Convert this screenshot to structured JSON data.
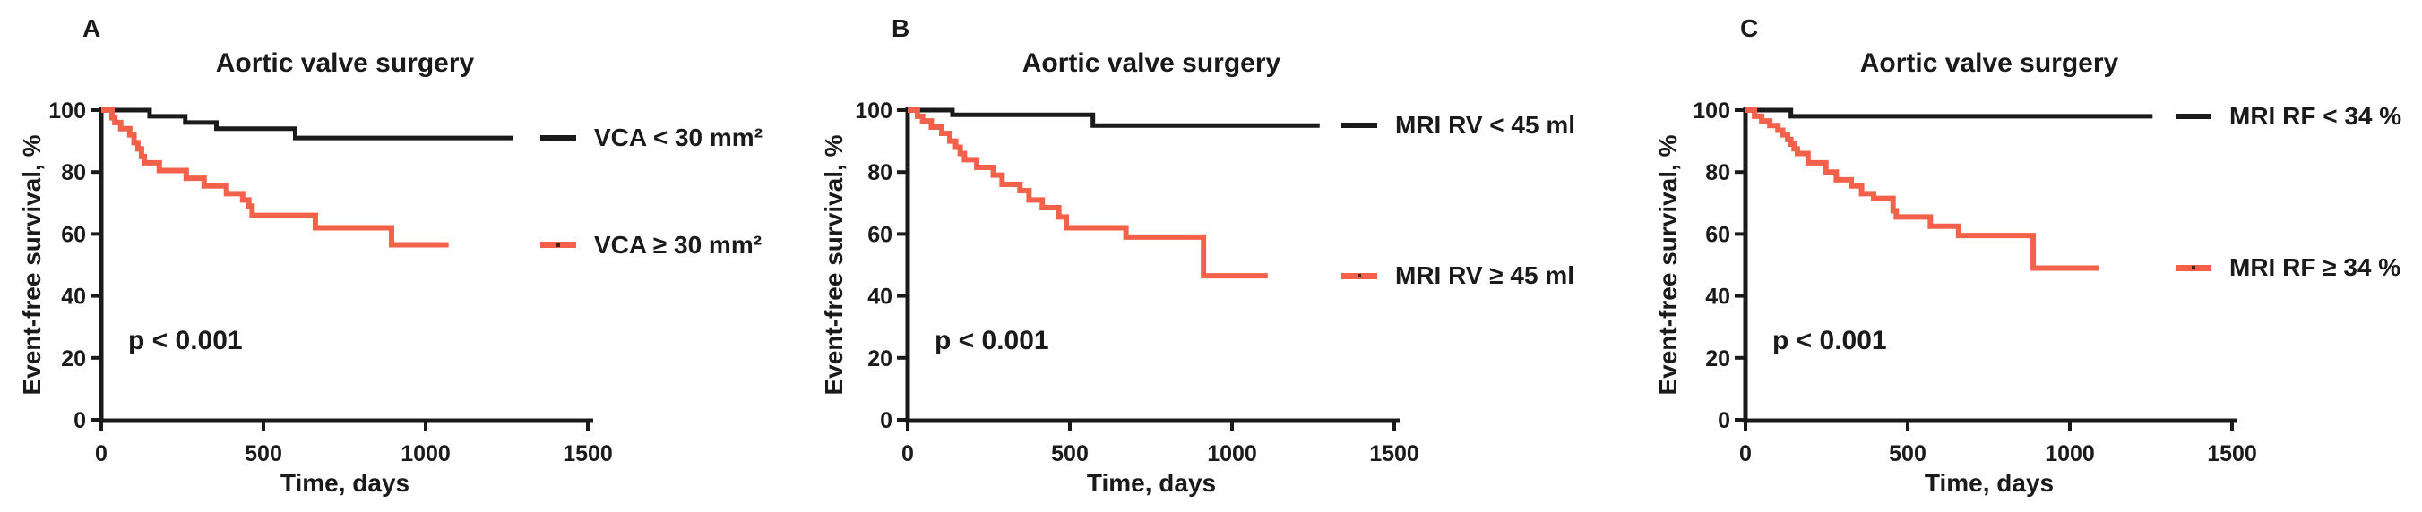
{
  "figure": {
    "background": "#ffffff",
    "text_color": "#1a1a1a",
    "curve_black": "#1a1a1a",
    "curve_red": "#f4614a"
  },
  "chart_data": [
    {
      "type": "line",
      "subtype": "kaplan-meier-step",
      "panel": "A",
      "title": "Aortic valve surgery",
      "xlabel": "Time, days",
      "ylabel": "Event-free survival, %",
      "annotation": "p < 0.001",
      "xlim": [
        0,
        1500
      ],
      "ylim": [
        0,
        100
      ],
      "xticks": [
        0,
        500,
        1000,
        1500
      ],
      "yticks": [
        0,
        20,
        40,
        60,
        80,
        100
      ],
      "grid": false,
      "legend_position": "right-of-plot, aligned with curve end",
      "series": [
        {
          "name": "VCA < 30 mm²",
          "color": "#1a1a1a",
          "points": [
            [
              0,
              100
            ],
            [
              149,
              98
            ],
            [
              259,
              96
            ],
            [
              355,
              94
            ],
            [
              598,
              91
            ],
            [
              1270,
              91
            ]
          ]
        },
        {
          "name": "VCA ≥ 30 mm²",
          "color": "#f4614a",
          "points": [
            [
              0,
              100
            ],
            [
              33,
              97.5
            ],
            [
              42,
              96
            ],
            [
              60,
              94
            ],
            [
              88,
              92
            ],
            [
              101,
              89.5
            ],
            [
              113,
              87.5
            ],
            [
              124,
              85
            ],
            [
              133,
              83
            ],
            [
              179,
              80.5
            ],
            [
              262,
              78
            ],
            [
              317,
              75.5
            ],
            [
              386,
              73
            ],
            [
              436,
              71
            ],
            [
              455,
              69
            ],
            [
              465,
              66
            ],
            [
              660,
              62
            ],
            [
              895,
              56.5
            ],
            [
              1071,
              56.5
            ]
          ]
        }
      ]
    },
    {
      "type": "line",
      "subtype": "kaplan-meier-step",
      "panel": "B",
      "title": "Aortic valve surgery",
      "xlabel": "Time, days",
      "ylabel": "Event-free survival, %",
      "annotation": "p < 0.001",
      "xlim": [
        0,
        1500
      ],
      "ylim": [
        0,
        100
      ],
      "xticks": [
        0,
        500,
        1000,
        1500
      ],
      "yticks": [
        0,
        20,
        40,
        60,
        80,
        100
      ],
      "grid": false,
      "legend_position": "right-of-plot, aligned with curve end",
      "series": [
        {
          "name": "MRI RV < 45 ml",
          "color": "#1a1a1a",
          "points": [
            [
              0,
              100
            ],
            [
              138,
              98.5
            ],
            [
              571,
              95
            ],
            [
              1270,
              95
            ]
          ]
        },
        {
          "name": "MRI RV ≥ 45 ml",
          "color": "#f4614a",
          "points": [
            [
              0,
              100
            ],
            [
              30,
              98
            ],
            [
              46,
              96.5
            ],
            [
              73,
              94.5
            ],
            [
              105,
              92.5
            ],
            [
              130,
              90
            ],
            [
              148,
              88
            ],
            [
              162,
              86
            ],
            [
              175,
              84
            ],
            [
              213,
              81.5
            ],
            [
              264,
              79
            ],
            [
              291,
              76
            ],
            [
              346,
              74
            ],
            [
              374,
              71
            ],
            [
              415,
              68.5
            ],
            [
              466,
              65.5
            ],
            [
              489,
              62
            ],
            [
              673,
              59
            ],
            [
              912,
              46.5
            ],
            [
              1110,
              46.5
            ]
          ]
        }
      ]
    },
    {
      "type": "line",
      "subtype": "kaplan-meier-step",
      "panel": "C",
      "title": "Aortic valve surgery",
      "xlabel": "Time, days",
      "ylabel": "Event-free survival, %",
      "annotation": "p < 0.001",
      "xlim": [
        0,
        1500
      ],
      "ylim": [
        0,
        100
      ],
      "xticks": [
        0,
        500,
        1000,
        1500
      ],
      "yticks": [
        0,
        20,
        40,
        60,
        80,
        100
      ],
      "grid": false,
      "legend_position": "right-of-plot, aligned with curve end",
      "series": [
        {
          "name": "MRI RF < 34 %",
          "color": "#1a1a1a",
          "points": [
            [
              0,
              100
            ],
            [
              140,
              98
            ],
            [
              1255,
              98
            ]
          ]
        },
        {
          "name": "MRI RF ≥ 34 %",
          "color": "#f4614a",
          "points": [
            [
              0,
              100
            ],
            [
              28,
              98
            ],
            [
              50,
              96.5
            ],
            [
              75,
              95
            ],
            [
              100,
              93.5
            ],
            [
              115,
              92
            ],
            [
              130,
              90.5
            ],
            [
              140,
              89
            ],
            [
              150,
              87.5
            ],
            [
              160,
              86
            ],
            [
              193,
              83
            ],
            [
              248,
              80
            ],
            [
              280,
              77.5
            ],
            [
              326,
              75.5
            ],
            [
              358,
              73
            ],
            [
              395,
              71.5
            ],
            [
              455,
              67.5
            ],
            [
              465,
              65.5
            ],
            [
              570,
              62.5
            ],
            [
              657,
              59.5
            ],
            [
              887,
              49
            ],
            [
              1090,
              49
            ]
          ]
        }
      ]
    }
  ]
}
